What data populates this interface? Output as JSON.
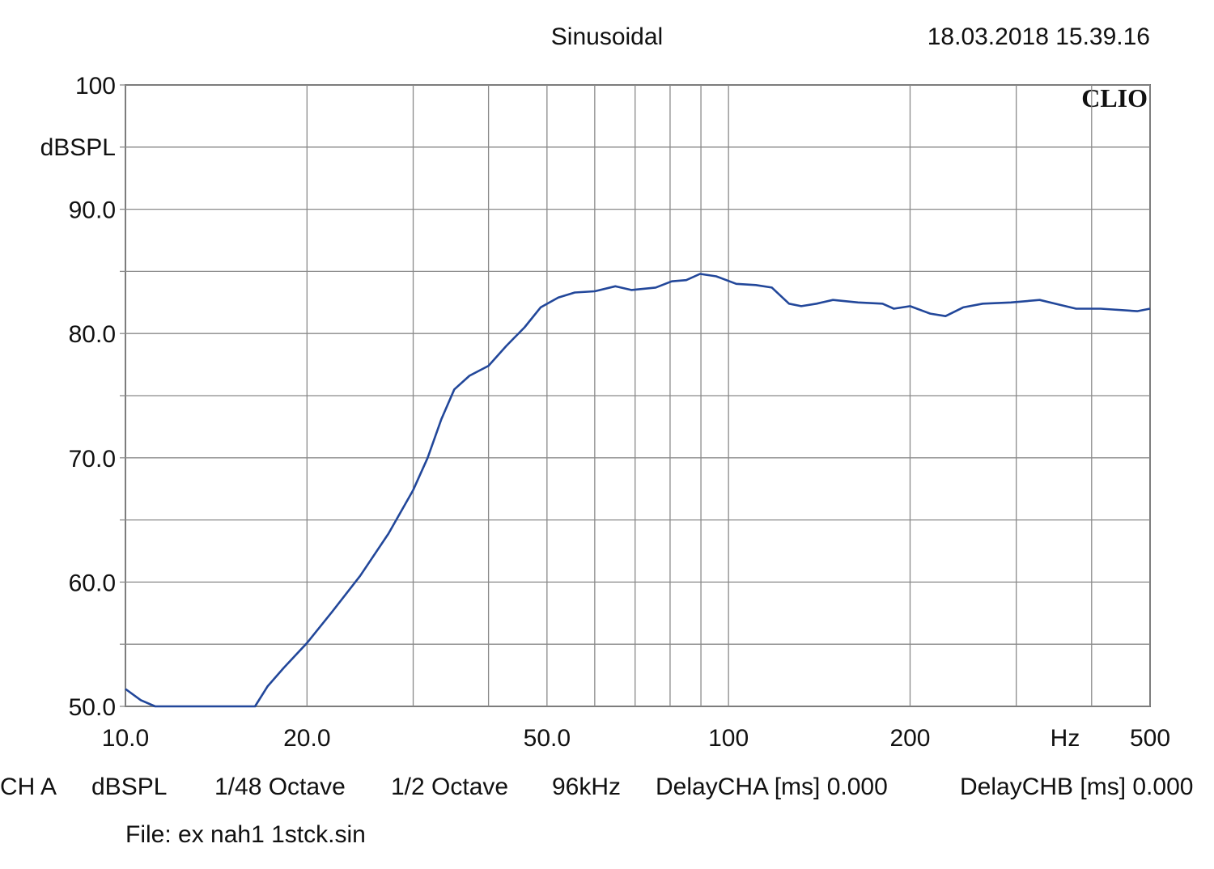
{
  "chart_data": {
    "type": "line",
    "title": "Sinusoidal",
    "timestamp": "18.03.2018 15.39.16",
    "logo": "CLIO",
    "y_label": "dBSPL",
    "x_label": "Hz",
    "xscale": "log",
    "grid": true,
    "xlim": [
      10,
      500
    ],
    "ylim": [
      50,
      100
    ],
    "xticks": [
      {
        "value": 10,
        "label": "10.0"
      },
      {
        "value": 20,
        "label": "20.0"
      },
      {
        "value": 50,
        "label": "50.0"
      },
      100,
      200,
      500
    ],
    "xminor": [
      30,
      40,
      60,
      70,
      80,
      90,
      300,
      400
    ],
    "yticks": [
      100,
      {
        "value": 90,
        "label": "90.0"
      },
      {
        "value": 80,
        "label": "80.0"
      },
      {
        "value": 70,
        "label": "70.0"
      },
      {
        "value": 60,
        "label": "60.0"
      },
      {
        "value": 50,
        "label": "50.0"
      }
    ],
    "yminor": [
      95,
      85,
      75,
      65,
      55
    ],
    "x": [
      10,
      10.6,
      11.2,
      16.4,
      17.2,
      18.3,
      20,
      22,
      24.5,
      27.3,
      30,
      31.7,
      33.4,
      35.1,
      37.2,
      40,
      42.8,
      45.9,
      48.8,
      52.2,
      55.6,
      60,
      64.9,
      69,
      75.7,
      80.5,
      85.1,
      89.7,
      95.4,
      103,
      111,
      118,
      126,
      132,
      140,
      149,
      164,
      180,
      188,
      200,
      216,
      229,
      245,
      264,
      294,
      328,
      355,
      377,
      414,
      476,
      500
    ],
    "series": [
      {
        "color": "#22479a",
        "values": [
          51.4,
          50.5,
          50,
          50,
          51.6,
          53.1,
          55.1,
          57.6,
          60.5,
          63.9,
          67.4,
          70.0,
          73.1,
          75.5,
          76.6,
          77.4,
          79.0,
          80.5,
          82.1,
          82.9,
          83.3,
          83.4,
          83.8,
          83.5,
          83.7,
          84.2,
          84.3,
          84.8,
          84.6,
          84.0,
          83.9,
          83.7,
          82.4,
          82.2,
          82.4,
          82.7,
          82.5,
          82.4,
          82.0,
          82.2,
          81.6,
          81.4,
          82.1,
          82.4,
          82.5,
          82.7,
          82.3,
          82.0,
          82.0,
          81.8,
          82.0
        ]
      }
    ],
    "footer": [
      "CH A",
      "dBSPL",
      "1/48 Octave",
      "1/2 Octave",
      "96kHz",
      "DelayCHA [ms] 0.000",
      "DelayCHB [ms] 0.000"
    ],
    "file": "File: ex nah1 1stck.sin"
  }
}
